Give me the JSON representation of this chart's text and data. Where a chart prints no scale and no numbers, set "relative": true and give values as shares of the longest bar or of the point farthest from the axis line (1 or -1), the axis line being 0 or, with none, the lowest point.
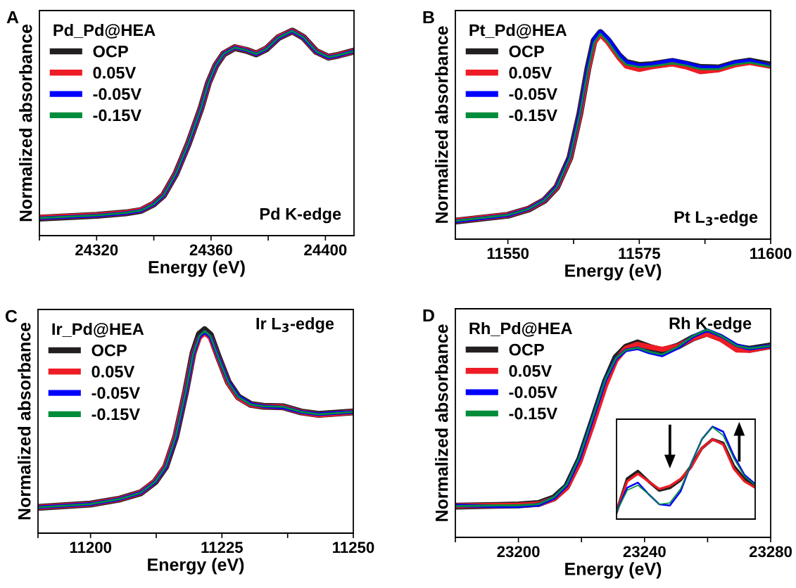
{
  "chart_data": [
    {
      "type": "line",
      "title": "A",
      "legend_title": "Pd_Pd@HEA",
      "xlabel": "Energy (eV)",
      "ylabel": "Normalized absorbance",
      "relative": true,
      "tick_labels": "x",
      "legend": "top left",
      "grid": false,
      "marker": "none",
      "line_style": "solid",
      "annotations": [
        "Pd K-edge"
      ],
      "xlim": [
        24300,
        24410
      ],
      "xticks": [
        {
          "value": 24300,
          "label": null
        },
        24320,
        {
          "value": 24340,
          "label": null
        },
        24360,
        {
          "value": 24380,
          "label": null
        },
        24400
      ],
      "x": [
        24300.2,
        24320,
        24330.2,
        24335.5,
        24339.9,
        24343.4,
        24347.7,
        24352.1,
        24356.5,
        24359.1,
        24361.7,
        24364.4,
        24368.3,
        24372.3,
        24375.8,
        24379.3,
        24383.6,
        24388.4,
        24392.4,
        24396.8,
        24401.1,
        24404.6,
        24409.5
      ],
      "series": [
        {
          "name": "OCP",
          "color": "#231f20",
          "values": [
            0.086,
            0.099,
            0.111,
            0.123,
            0.154,
            0.197,
            0.302,
            0.45,
            0.623,
            0.746,
            0.832,
            0.888,
            0.919,
            0.906,
            0.888,
            0.912,
            0.968,
            1.0,
            0.968,
            0.9,
            0.872,
            0.882,
            0.9
          ]
        },
        {
          "name": "0.05V",
          "color": "#ee1c25",
          "values": [
            0.088,
            0.1,
            0.112,
            0.124,
            0.155,
            0.198,
            0.302,
            0.45,
            0.622,
            0.745,
            0.832,
            0.888,
            0.92,
            0.907,
            0.889,
            0.913,
            0.969,
            1.0,
            0.968,
            0.9,
            0.872,
            0.882,
            0.9
          ]
        },
        {
          "name": "-0.05V",
          "color": "#0000ff",
          "values": [
            0.085,
            0.098,
            0.11,
            0.122,
            0.153,
            0.196,
            0.3,
            0.448,
            0.622,
            0.745,
            0.831,
            0.888,
            0.919,
            0.906,
            0.887,
            0.911,
            0.967,
            0.999,
            0.967,
            0.899,
            0.871,
            0.881,
            0.9
          ]
        },
        {
          "name": "-0.15V",
          "color": "#008c3a",
          "values": [
            0.086,
            0.099,
            0.111,
            0.123,
            0.154,
            0.197,
            0.302,
            0.45,
            0.623,
            0.746,
            0.832,
            0.888,
            0.919,
            0.906,
            0.888,
            0.912,
            0.968,
            1.0,
            0.968,
            0.9,
            0.872,
            0.882,
            0.9
          ]
        }
      ]
    },
    {
      "type": "line",
      "title": "B",
      "legend_title": "Pt_Pd@HEA",
      "xlabel": "Energy (eV)",
      "ylabel": "Normalized absorbance",
      "relative": true,
      "tick_labels": "x",
      "legend": "top left",
      "grid": false,
      "marker": "none",
      "line_style": "solid",
      "annotations": [
        "Pt L$_{3}$-edge"
      ],
      "xlim": [
        11540,
        11600
      ],
      "xticks": [
        11550,
        {
          "value": 11562.5,
          "label": null
        },
        11575,
        {
          "value": 11587.5,
          "label": null
        },
        11600
      ],
      "x": [
        11540,
        11550,
        11553.9,
        11556.9,
        11559.3,
        11561.8,
        11563.7,
        11565.2,
        11566.4,
        11567.6,
        11569.1,
        11571.1,
        11572.5,
        11575,
        11577.4,
        11581.3,
        11583.8,
        11586.7,
        11590.1,
        11593.1,
        11596,
        11600
      ],
      "series": [
        {
          "name": "OCP",
          "color": "#231f20",
          "values": [
            0.087,
            0.115,
            0.144,
            0.186,
            0.25,
            0.392,
            0.605,
            0.818,
            0.955,
            0.994,
            0.955,
            0.884,
            0.85,
            0.836,
            0.84,
            0.855,
            0.843,
            0.826,
            0.824,
            0.846,
            0.857,
            0.838
          ]
        },
        {
          "name": "0.05V",
          "color": "#ee1c25",
          "values": [
            0.088,
            0.116,
            0.145,
            0.187,
            0.25,
            0.39,
            0.6,
            0.81,
            0.945,
            0.985,
            0.945,
            0.874,
            0.833,
            0.817,
            0.83,
            0.843,
            0.83,
            0.806,
            0.815,
            0.838,
            0.85,
            0.832
          ]
        },
        {
          "name": "-0.05V",
          "color": "#0000ff",
          "values": [
            0.086,
            0.115,
            0.145,
            0.188,
            0.253,
            0.398,
            0.614,
            0.828,
            0.965,
            1.0,
            0.965,
            0.892,
            0.853,
            0.836,
            0.842,
            0.861,
            0.848,
            0.828,
            0.826,
            0.85,
            0.86,
            0.834
          ]
        },
        {
          "name": "-0.15V",
          "color": "#008c3a",
          "values": [
            0.088,
            0.116,
            0.145,
            0.187,
            0.251,
            0.393,
            0.605,
            0.814,
            0.947,
            0.988,
            0.947,
            0.876,
            0.84,
            0.828,
            0.832,
            0.846,
            0.836,
            0.818,
            0.818,
            0.84,
            0.85,
            0.83
          ]
        }
      ]
    },
    {
      "type": "line",
      "title": "C",
      "legend_title": "Ir_Pd@HEA",
      "xlabel": "Energy (eV)",
      "ylabel": "Normalized absorbance",
      "relative": true,
      "tick_labels": "x",
      "legend": "top left",
      "grid": false,
      "marker": "none",
      "line_style": "solid",
      "annotations": [
        "Ir L$_{3}$-edge"
      ],
      "xlim": [
        11190,
        11250
      ],
      "xticks": [
        {
          "value": 11190,
          "label": null
        },
        11200,
        {
          "value": 11212.5,
          "label": null
        },
        11225,
        {
          "value": 11237.5,
          "label": null
        },
        11250
      ],
      "x": [
        11190,
        11200,
        11205.6,
        11209.5,
        11212.3,
        11214.3,
        11216.2,
        11218.1,
        11219.5,
        11220.7,
        11221.7,
        11222.8,
        11224.3,
        11226.2,
        11228.1,
        11230.5,
        11232.9,
        11236.7,
        11240.1,
        11243.4,
        11246.8,
        11250
      ],
      "series": [
        {
          "name": "OCP",
          "color": "#231f20",
          "values": [
            0.127,
            0.143,
            0.168,
            0.198,
            0.253,
            0.327,
            0.474,
            0.697,
            0.885,
            0.978,
            1.0,
            0.975,
            0.868,
            0.743,
            0.67,
            0.633,
            0.624,
            0.621,
            0.596,
            0.584,
            0.59,
            0.596
          ]
        },
        {
          "name": "0.05V",
          "color": "#ee1c25",
          "values": [
            0.127,
            0.143,
            0.168,
            0.199,
            0.255,
            0.33,
            0.478,
            0.697,
            0.876,
            0.962,
            0.985,
            0.962,
            0.863,
            0.74,
            0.668,
            0.632,
            0.624,
            0.62,
            0.595,
            0.582,
            0.588,
            0.596
          ]
        },
        {
          "name": "-0.05V",
          "color": "#0000ff",
          "values": [
            0.127,
            0.143,
            0.168,
            0.198,
            0.252,
            0.325,
            0.47,
            0.69,
            0.876,
            0.966,
            0.99,
            0.967,
            0.868,
            0.746,
            0.673,
            0.635,
            0.624,
            0.618,
            0.596,
            0.585,
            0.591,
            0.596
          ]
        },
        {
          "name": "-0.15V",
          "color": "#008c3a",
          "values": [
            0.127,
            0.143,
            0.168,
            0.198,
            0.253,
            0.327,
            0.474,
            0.694,
            0.878,
            0.969,
            0.994,
            0.969,
            0.866,
            0.743,
            0.67,
            0.633,
            0.624,
            0.621,
            0.596,
            0.584,
            0.59,
            0.596
          ]
        }
      ]
    },
    {
      "type": "line",
      "title": "D",
      "legend_title": "Rh_Pd@HEA",
      "xlabel": "Energy (eV)",
      "ylabel": "Normalized absorbance",
      "relative": true,
      "tick_labels": "x",
      "legend": "top left",
      "grid": false,
      "marker": "none",
      "line_style": "solid",
      "annotations": [
        "Rh K-edge"
      ],
      "xlim": [
        23180,
        23280
      ],
      "xticks": [
        {
          "value": 23180,
          "label": null
        },
        23200,
        {
          "value": 23220,
          "label": null
        },
        23240,
        {
          "value": 23260,
          "label": null
        },
        23280
      ],
      "x": [
        23180,
        23193.5,
        23200,
        23206.4,
        23211.3,
        23215.3,
        23219.4,
        23223.5,
        23227.6,
        23230.9,
        23234.1,
        23237.8,
        23241.5,
        23245.6,
        23250.5,
        23255.4,
        23259.8,
        23264.3,
        23269.2,
        23273.3,
        23280
      ],
      "series": [
        {
          "name": "OCP",
          "color": "#231f20",
          "values": [
            0.15,
            0.154,
            0.156,
            0.163,
            0.19,
            0.245,
            0.375,
            0.56,
            0.75,
            0.865,
            0.915,
            0.936,
            0.915,
            0.898,
            0.92,
            0.96,
            0.983,
            0.958,
            0.915,
            0.905,
            0.922
          ]
        },
        {
          "name": "0.05V",
          "color": "#ee1c25",
          "values": [
            0.152,
            0.153,
            0.155,
            0.16,
            0.186,
            0.238,
            0.36,
            0.54,
            0.73,
            0.852,
            0.91,
            0.929,
            0.917,
            0.905,
            0.92,
            0.958,
            0.979,
            0.952,
            0.902,
            0.9,
            0.92
          ]
        },
        {
          "name": "-0.05V",
          "color": "#0000ff",
          "values": [
            0.153,
            0.15,
            0.15,
            0.157,
            0.19,
            0.25,
            0.382,
            0.57,
            0.758,
            0.86,
            0.9,
            0.91,
            0.89,
            0.876,
            0.912,
            0.967,
            0.997,
            0.97,
            0.925,
            0.908,
            0.922
          ]
        },
        {
          "name": "-0.15V",
          "color": "#008c3a",
          "values": [
            0.15,
            0.154,
            0.154,
            0.16,
            0.194,
            0.254,
            0.388,
            0.575,
            0.762,
            0.862,
            0.902,
            0.912,
            0.893,
            0.88,
            0.916,
            0.969,
            1.0,
            0.969,
            0.922,
            0.909,
            0.922
          ]
        }
      ]
    },
    {
      "type": "line",
      "relative": true,
      "tick_labels": false,
      "legend": false,
      "grid": false,
      "marker": "none",
      "line_style": "solid",
      "categories": [
        null,
        null,
        null,
        null,
        null,
        null,
        null,
        null,
        null,
        null,
        null,
        null,
        null,
        null
      ],
      "series": [
        {
          "color": "#231f20",
          "values": [
            0.077,
            0.435,
            0.518,
            0.408,
            0.311,
            0.339,
            0.421,
            0.573,
            0.766,
            0.862,
            0.821,
            0.573,
            0.435,
            0.353
          ]
        },
        {
          "color": "#ee1c25",
          "values": [
            0.077,
            0.408,
            0.49,
            0.408,
            0.325,
            0.358,
            0.435,
            0.559,
            0.766,
            0.862,
            0.807,
            0.545,
            0.408,
            0.339
          ]
        },
        {
          "color": "#0000ff",
          "values": [
            0.077,
            0.339,
            0.394,
            0.27,
            0.16,
            0.146,
            0.298,
            0.6,
            0.862,
            1.0,
            0.945,
            0.683,
            0.477,
            0.38
          ]
        },
        {
          "color": "#008c3a",
          "values": [
            0.077,
            0.311,
            0.366,
            0.27,
            0.16,
            0.174,
            0.325,
            0.6,
            0.862,
            0.994,
            0.904,
            0.656,
            0.463,
            0.366
          ]
        }
      ]
    }
  ]
}
